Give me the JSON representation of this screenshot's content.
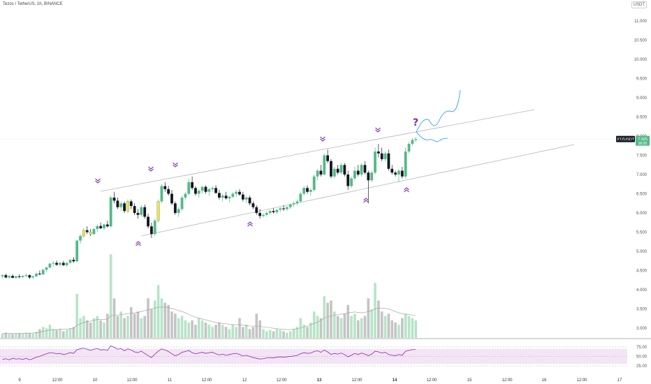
{
  "header": {
    "symbol_line": "Tezos / TetherUS, 1h, BINANCE",
    "currency_badge": "USDT"
  },
  "price_tag": {
    "symbol": "XTZUSDT",
    "price": "7.925",
    "countdown": "36:05"
  },
  "annotation": {
    "question_mark": "?"
  },
  "colors": {
    "up": "#53b987",
    "down": "#131722",
    "doji": "#e8e850",
    "volume_up": "#b7e4c7",
    "volume_down": "#c4c4c4",
    "channel": "#b2b5be",
    "projection": "#2196f3",
    "marker": "#7b2aa6",
    "rsi_line": "#8e24aa",
    "rsi_band": "#f3e5f5"
  },
  "chart_data": [
    {
      "type": "candlestick",
      "price_axis_ticks": [
        "11.000",
        "10.500",
        "10.000",
        "9.500",
        "9.000",
        "8.500",
        "8.000",
        "7.500",
        "7.000",
        "6.500",
        "6.000",
        "5.500",
        "5.000",
        "4.500",
        "4.000",
        "3.500",
        "3.000"
      ],
      "price_axis_values": [
        11.0,
        10.5,
        10.0,
        9.5,
        9.0,
        8.5,
        8.0,
        7.5,
        7.0,
        6.5,
        6.0,
        5.5,
        5.0,
        4.5,
        4.0,
        3.5,
        3.0
      ],
      "time_axis_ticks": [
        "9",
        "12:00",
        "10",
        "12:00",
        "11",
        "12:00",
        "12",
        "12:00",
        "13",
        "12:00",
        "14",
        "12:00",
        "15",
        "12:00",
        "16",
        "12:00",
        "17"
      ],
      "time_axis_bold": [
        false,
        false,
        false,
        false,
        false,
        false,
        false,
        false,
        true,
        false,
        true,
        false,
        false,
        false,
        false,
        false,
        false
      ],
      "ylim": [
        2.55,
        11.5
      ],
      "candles": [
        [
          4.35,
          4.4,
          4.3,
          4.38
        ],
        [
          4.38,
          4.42,
          4.3,
          4.32
        ],
        [
          4.32,
          4.38,
          4.28,
          4.36
        ],
        [
          4.36,
          4.4,
          4.3,
          4.31
        ],
        [
          4.31,
          4.37,
          4.28,
          4.35
        ],
        [
          4.35,
          4.4,
          4.3,
          4.33
        ],
        [
          4.33,
          4.38,
          4.3,
          4.36
        ],
        [
          4.36,
          4.42,
          4.32,
          4.38
        ],
        [
          4.38,
          4.4,
          4.28,
          4.32
        ],
        [
          4.32,
          4.38,
          4.28,
          4.35
        ],
        [
          4.35,
          4.45,
          4.33,
          4.42
        ],
        [
          4.42,
          4.5,
          4.38,
          4.4
        ],
        [
          4.4,
          4.55,
          4.38,
          4.52
        ],
        [
          4.52,
          4.6,
          4.45,
          4.58
        ],
        [
          4.58,
          4.7,
          4.55,
          4.68
        ],
        [
          4.68,
          4.75,
          4.6,
          4.7
        ],
        [
          4.7,
          4.76,
          4.62,
          4.65
        ],
        [
          4.65,
          4.72,
          4.6,
          4.7
        ],
        [
          4.7,
          4.75,
          4.62,
          4.64
        ],
        [
          4.64,
          4.72,
          4.6,
          4.7
        ],
        [
          4.7,
          4.8,
          4.68,
          4.78
        ],
        [
          4.78,
          4.85,
          4.7,
          4.74
        ],
        [
          4.74,
          5.3,
          4.72,
          5.28
        ],
        [
          5.28,
          5.45,
          5.2,
          5.4
        ],
        [
          5.4,
          5.6,
          5.35,
          5.55
        ],
        [
          5.55,
          5.65,
          5.45,
          5.5
        ],
        [
          5.5,
          5.58,
          5.4,
          5.45
        ],
        [
          5.45,
          5.6,
          5.42,
          5.58
        ],
        [
          5.58,
          5.7,
          5.5,
          5.66
        ],
        [
          5.66,
          5.75,
          5.58,
          5.6
        ],
        [
          5.6,
          5.72,
          5.55,
          5.7
        ],
        [
          5.7,
          5.8,
          5.62,
          5.65
        ],
        [
          5.65,
          6.45,
          5.62,
          6.4
        ],
        [
          6.4,
          6.55,
          6.25,
          6.32
        ],
        [
          6.32,
          6.4,
          6.1,
          6.15
        ],
        [
          6.15,
          6.3,
          6.05,
          6.25
        ],
        [
          6.25,
          6.3,
          6.0,
          6.05
        ],
        [
          6.05,
          6.35,
          6.0,
          6.3
        ],
        [
          6.3,
          6.35,
          6.1,
          6.18
        ],
        [
          6.18,
          6.25,
          5.95,
          6.0
        ],
        [
          6.0,
          6.1,
          5.85,
          5.95
        ],
        [
          5.95,
          6.2,
          5.9,
          6.15
        ],
        [
          6.15,
          6.22,
          5.85,
          5.9
        ],
        [
          5.9,
          5.98,
          5.6,
          5.65
        ],
        [
          5.65,
          5.75,
          5.35,
          5.45
        ],
        [
          5.45,
          5.85,
          5.4,
          5.8
        ],
        [
          5.8,
          6.35,
          5.75,
          6.3
        ],
        [
          6.3,
          6.75,
          6.25,
          6.7
        ],
        [
          6.7,
          6.8,
          6.55,
          6.62
        ],
        [
          6.62,
          6.7,
          6.45,
          6.5
        ],
        [
          6.5,
          6.6,
          6.2,
          6.25
        ],
        [
          6.25,
          6.3,
          5.95,
          6.0
        ],
        [
          6.0,
          6.15,
          5.9,
          6.1
        ],
        [
          6.1,
          6.45,
          6.05,
          6.4
        ],
        [
          6.4,
          6.55,
          6.35,
          6.5
        ],
        [
          6.5,
          6.9,
          6.45,
          6.8
        ],
        [
          6.8,
          6.95,
          6.6,
          6.65
        ],
        [
          6.65,
          6.7,
          6.45,
          6.5
        ],
        [
          6.5,
          6.62,
          6.4,
          6.58
        ],
        [
          6.58,
          6.7,
          6.5,
          6.68
        ],
        [
          6.68,
          6.72,
          6.5,
          6.55
        ],
        [
          6.55,
          6.65,
          6.45,
          6.62
        ],
        [
          6.62,
          6.7,
          6.55,
          6.65
        ],
        [
          6.65,
          6.72,
          6.5,
          6.52
        ],
        [
          6.52,
          6.6,
          6.35,
          6.4
        ],
        [
          6.4,
          6.5,
          6.3,
          6.45
        ],
        [
          6.45,
          6.55,
          6.35,
          6.38
        ],
        [
          6.38,
          6.45,
          6.28,
          6.42
        ],
        [
          6.42,
          6.55,
          6.38,
          6.5
        ],
        [
          6.5,
          6.6,
          6.42,
          6.55
        ],
        [
          6.55,
          6.62,
          6.45,
          6.48
        ],
        [
          6.48,
          6.55,
          6.3,
          6.35
        ],
        [
          6.35,
          6.45,
          6.25,
          6.4
        ],
        [
          6.4,
          6.45,
          6.2,
          6.25
        ],
        [
          6.25,
          6.3,
          6.1,
          6.15
        ],
        [
          6.15,
          6.2,
          5.95,
          6.0
        ],
        [
          6.0,
          6.1,
          5.85,
          5.92
        ],
        [
          5.92,
          6.0,
          5.88,
          5.95
        ],
        [
          5.95,
          6.05,
          5.9,
          6.0
        ],
        [
          6.0,
          6.08,
          5.95,
          6.05
        ],
        [
          6.05,
          6.12,
          5.98,
          6.02
        ],
        [
          6.02,
          6.1,
          5.97,
          6.08
        ],
        [
          6.08,
          6.15,
          6.02,
          6.12
        ],
        [
          6.12,
          6.2,
          6.05,
          6.1
        ],
        [
          6.1,
          6.18,
          6.05,
          6.15
        ],
        [
          6.15,
          6.25,
          6.1,
          6.22
        ],
        [
          6.22,
          6.3,
          6.15,
          6.25
        ],
        [
          6.25,
          6.35,
          6.2,
          6.3
        ],
        [
          6.3,
          6.55,
          6.28,
          6.5
        ],
        [
          6.5,
          6.7,
          6.45,
          6.65
        ],
        [
          6.65,
          6.72,
          6.5,
          6.55
        ],
        [
          6.55,
          6.65,
          6.45,
          6.6
        ],
        [
          6.6,
          7.0,
          6.55,
          6.95
        ],
        [
          6.95,
          7.15,
          6.85,
          7.1
        ],
        [
          7.1,
          7.25,
          6.95,
          7.0
        ],
        [
          7.0,
          7.55,
          6.98,
          7.5
        ],
        [
          7.5,
          7.65,
          7.3,
          7.35
        ],
        [
          7.35,
          7.4,
          6.9,
          6.95
        ],
        [
          6.95,
          7.2,
          6.9,
          7.15
        ],
        [
          7.15,
          7.25,
          7.0,
          7.05
        ],
        [
          7.05,
          7.3,
          7.0,
          7.25
        ],
        [
          7.25,
          7.3,
          6.95,
          7.0
        ],
        [
          7.0,
          7.1,
          6.6,
          6.7
        ],
        [
          6.7,
          6.95,
          6.65,
          6.9
        ],
        [
          6.9,
          7.2,
          6.85,
          7.1
        ],
        [
          7.1,
          7.25,
          6.95,
          7.0
        ],
        [
          7.0,
          7.3,
          6.95,
          7.25
        ],
        [
          7.25,
          7.35,
          7.0,
          7.05
        ],
        [
          7.05,
          7.1,
          6.25,
          6.85
        ],
        [
          6.85,
          7.1,
          6.8,
          7.05
        ],
        [
          7.05,
          7.7,
          7.0,
          7.6
        ],
        [
          7.6,
          7.8,
          7.45,
          7.55
        ],
        [
          7.55,
          7.7,
          7.35,
          7.4
        ],
        [
          7.4,
          7.6,
          7.35,
          7.55
        ],
        [
          7.55,
          7.65,
          7.1,
          7.15
        ],
        [
          7.15,
          7.25,
          7.0,
          7.05
        ],
        [
          7.05,
          7.1,
          6.95,
          7.0
        ],
        [
          7.0,
          7.15,
          6.8,
          7.1
        ],
        [
          7.1,
          7.2,
          6.9,
          6.95
        ],
        [
          6.95,
          7.7,
          6.9,
          7.6
        ],
        [
          7.6,
          7.85,
          7.55,
          7.8
        ],
        [
          7.8,
          7.95,
          7.75,
          7.9
        ],
        [
          7.9,
          7.98,
          7.85,
          7.925
        ]
      ],
      "doji_indices": [
        24,
        26,
        37,
        46
      ],
      "volume": [
        0.1,
        0.12,
        0.1,
        0.09,
        0.1,
        0.11,
        0.1,
        0.12,
        0.11,
        0.1,
        0.14,
        0.2,
        0.25,
        0.22,
        0.3,
        0.2,
        0.18,
        0.2,
        0.15,
        0.18,
        0.22,
        0.25,
        1.0,
        0.45,
        0.5,
        0.4,
        0.35,
        0.45,
        0.5,
        0.4,
        0.35,
        0.55,
        1.9,
        0.9,
        0.5,
        0.6,
        0.45,
        0.5,
        0.7,
        0.55,
        0.6,
        0.45,
        0.5,
        0.9,
        0.65,
        0.85,
        1.2,
        0.9,
        0.8,
        0.75,
        0.6,
        0.55,
        0.45,
        0.5,
        0.4,
        0.35,
        0.4,
        0.3,
        0.45,
        0.4,
        0.35,
        0.3,
        0.25,
        0.3,
        0.35,
        0.3,
        0.25,
        0.2,
        0.3,
        0.25,
        0.45,
        0.25,
        0.3,
        0.2,
        0.25,
        0.55,
        0.4,
        0.2,
        0.15,
        0.18,
        0.15,
        0.2,
        0.18,
        0.15,
        0.12,
        0.15,
        0.2,
        0.25,
        0.45,
        0.3,
        0.25,
        0.35,
        0.6,
        0.5,
        0.45,
        0.95,
        0.8,
        0.85,
        0.6,
        0.5,
        0.45,
        0.55,
        0.75,
        0.5,
        0.55,
        0.4,
        0.45,
        0.5,
        0.9,
        0.65,
        1.25,
        0.85,
        0.6,
        0.5,
        0.55,
        0.4,
        0.35,
        0.3,
        0.45,
        0.55,
        0.5,
        0.45,
        0.4
      ],
      "volume_ma": [
        0.1,
        0.1,
        0.1,
        0.1,
        0.1,
        0.1,
        0.1,
        0.11,
        0.11,
        0.11,
        0.12,
        0.13,
        0.15,
        0.16,
        0.18,
        0.19,
        0.19,
        0.2,
        0.2,
        0.2,
        0.21,
        0.22,
        0.29,
        0.32,
        0.35,
        0.37,
        0.38,
        0.4,
        0.42,
        0.42,
        0.42,
        0.43,
        0.5,
        0.52,
        0.52,
        0.53,
        0.54,
        0.55,
        0.56,
        0.57,
        0.58,
        0.6,
        0.62,
        0.64,
        0.66,
        0.68,
        0.7,
        0.7,
        0.7,
        0.69,
        0.67,
        0.65,
        0.62,
        0.6,
        0.57,
        0.54,
        0.5,
        0.47,
        0.45,
        0.43,
        0.41,
        0.39,
        0.37,
        0.35,
        0.34,
        0.33,
        0.32,
        0.31,
        0.3,
        0.3,
        0.3,
        0.29,
        0.28,
        0.27,
        0.27,
        0.27,
        0.26,
        0.25,
        0.24,
        0.23,
        0.22,
        0.21,
        0.2,
        0.2,
        0.19,
        0.19,
        0.2,
        0.21,
        0.23,
        0.25,
        0.27,
        0.3,
        0.33,
        0.36,
        0.4,
        0.45,
        0.48,
        0.5,
        0.52,
        0.53,
        0.54,
        0.55,
        0.57,
        0.58,
        0.59,
        0.58,
        0.57,
        0.58,
        0.6,
        0.62,
        0.66,
        0.68,
        0.68,
        0.67,
        0.66,
        0.63,
        0.6,
        0.57,
        0.55,
        0.54,
        0.53,
        0.52,
        0.52
      ]
    },
    {
      "type": "line",
      "indicator": "RSI",
      "ticks": [
        "75.00",
        "50.00",
        "25.00"
      ],
      "tick_values": [
        75,
        50,
        25
      ],
      "band": [
        30,
        70
      ],
      "ylim": [
        5,
        95
      ],
      "values": [
        42,
        44,
        41,
        45,
        43,
        44,
        42,
        45,
        41,
        44,
        48,
        50,
        54,
        57,
        60,
        59,
        57,
        58,
        55,
        57,
        60,
        58,
        68,
        70,
        72,
        69,
        66,
        69,
        71,
        67,
        68,
        66,
        78,
        74,
        69,
        71,
        65,
        70,
        67,
        62,
        60,
        64,
        58,
        52,
        47,
        56,
        64,
        70,
        67,
        63,
        57,
        52,
        55,
        61,
        63,
        66,
        60,
        57,
        59,
        61,
        58,
        60,
        61,
        57,
        54,
        56,
        53,
        55,
        57,
        58,
        55,
        51,
        53,
        50,
        47,
        45,
        43,
        44,
        46,
        47,
        46,
        48,
        49,
        48,
        49,
        50,
        51,
        53,
        57,
        60,
        58,
        59,
        63,
        65,
        61,
        67,
        62,
        55,
        58,
        56,
        59,
        55,
        49,
        53,
        58,
        55,
        59,
        56,
        52,
        56,
        64,
        62,
        59,
        61,
        55,
        53,
        52,
        55,
        53,
        64,
        66,
        68,
        68
      ]
    }
  ]
}
